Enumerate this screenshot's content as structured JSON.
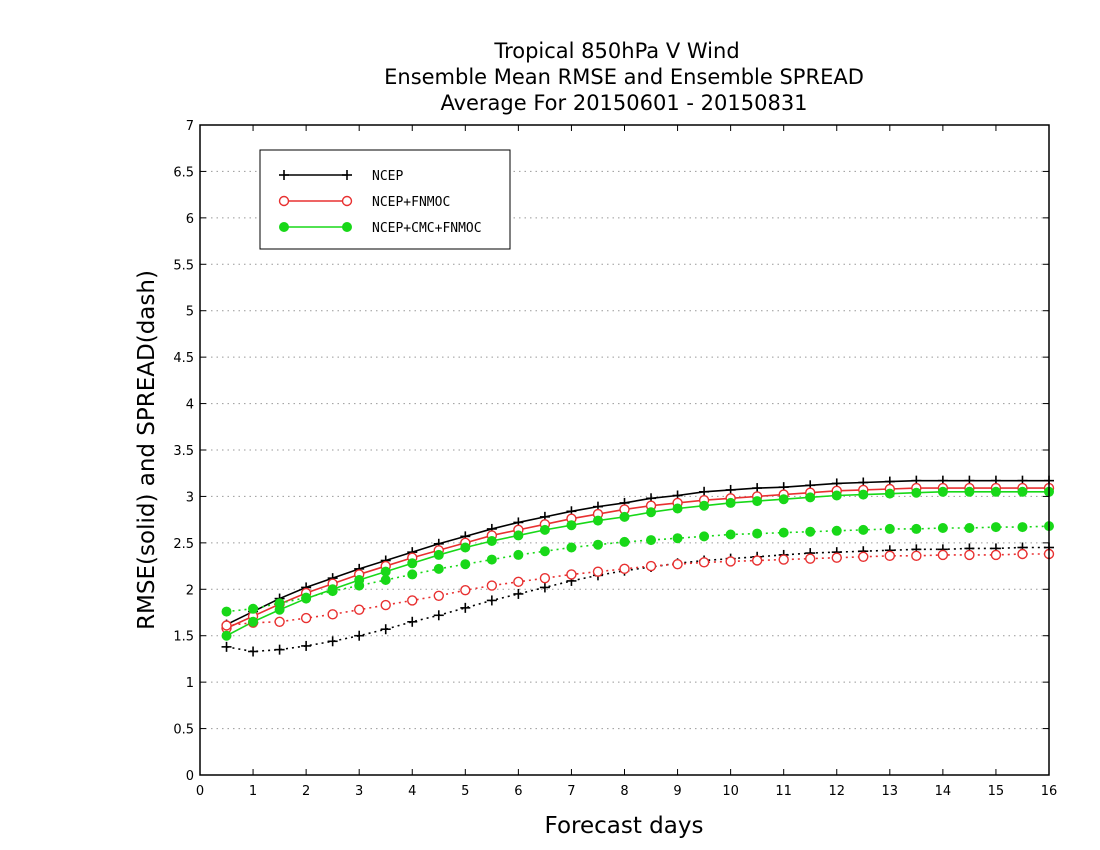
{
  "chart_data": {
    "type": "line",
    "title": [
      "Tropical 850hPa V Wind",
      "Ensemble Mean RMSE and Ensemble SPREAD",
      "Average For 20150601 - 20150831"
    ],
    "xlabel": "Forecast days",
    "ylabel": "RMSE(solid) and SPREAD(dash)",
    "xlim": [
      0,
      16
    ],
    "ylim": [
      0,
      7
    ],
    "xticks": [
      "0",
      "1",
      "2",
      "3",
      "4",
      "5",
      "6",
      "7",
      "8",
      "9",
      "10",
      "11",
      "12",
      "13",
      "14",
      "15",
      "16"
    ],
    "yticks": [
      "0",
      "0.5",
      "1",
      "1.5",
      "2",
      "2.5",
      "3",
      "3.5",
      "4",
      "4.5",
      "5",
      "5.5",
      "6",
      "6.5",
      "7"
    ],
    "grid": "horizontal dotted",
    "legend_position": "top-left",
    "x": [
      0.5,
      1,
      1.5,
      2,
      2.5,
      3,
      3.5,
      4,
      4.5,
      5,
      5.5,
      6,
      6.5,
      7,
      7.5,
      8,
      8.5,
      9,
      9.5,
      10,
      10.5,
      11,
      11.5,
      12,
      12.5,
      13,
      13.5,
      14,
      14.5,
      15,
      15.5,
      16
    ],
    "series": [
      {
        "name": "NCEP",
        "color": "#000000",
        "marker": "plus",
        "rmse": [
          1.62,
          1.76,
          1.9,
          2.02,
          2.12,
          2.22,
          2.31,
          2.4,
          2.49,
          2.57,
          2.65,
          2.72,
          2.78,
          2.84,
          2.89,
          2.93,
          2.98,
          3.01,
          3.05,
          3.07,
          3.09,
          3.1,
          3.12,
          3.14,
          3.15,
          3.16,
          3.17,
          3.17,
          3.17,
          3.17,
          3.17,
          3.17
        ],
        "spread": [
          1.38,
          1.33,
          1.35,
          1.39,
          1.44,
          1.5,
          1.57,
          1.65,
          1.72,
          1.8,
          1.88,
          1.95,
          2.02,
          2.09,
          2.15,
          2.2,
          2.24,
          2.28,
          2.31,
          2.33,
          2.35,
          2.37,
          2.39,
          2.4,
          2.41,
          2.42,
          2.43,
          2.43,
          2.44,
          2.44,
          2.45,
          2.45
        ]
      },
      {
        "name": "NCEP+FNMOC",
        "color": "#e83030",
        "marker": "open-circle",
        "rmse": [
          1.58,
          1.71,
          1.84,
          1.96,
          2.06,
          2.16,
          2.25,
          2.34,
          2.42,
          2.5,
          2.58,
          2.64,
          2.7,
          2.76,
          2.81,
          2.86,
          2.9,
          2.93,
          2.96,
          2.98,
          3.0,
          3.02,
          3.04,
          3.06,
          3.07,
          3.08,
          3.09,
          3.09,
          3.09,
          3.09,
          3.09,
          3.09
        ],
        "spread": [
          1.61,
          1.64,
          1.65,
          1.69,
          1.73,
          1.78,
          1.83,
          1.88,
          1.93,
          1.99,
          2.04,
          2.08,
          2.12,
          2.16,
          2.19,
          2.22,
          2.25,
          2.27,
          2.29,
          2.3,
          2.31,
          2.32,
          2.33,
          2.34,
          2.35,
          2.36,
          2.36,
          2.37,
          2.37,
          2.37,
          2.38,
          2.38
        ]
      },
      {
        "name": "NCEP+CMC+FNMOC",
        "color": "#18d818",
        "marker": "filled-circle",
        "rmse": [
          1.5,
          1.65,
          1.78,
          1.9,
          2.0,
          2.1,
          2.19,
          2.28,
          2.37,
          2.45,
          2.52,
          2.58,
          2.64,
          2.69,
          2.74,
          2.78,
          2.83,
          2.87,
          2.9,
          2.93,
          2.95,
          2.97,
          2.99,
          3.01,
          3.02,
          3.03,
          3.04,
          3.05,
          3.05,
          3.05,
          3.05,
          3.05
        ],
        "spread": [
          1.76,
          1.79,
          1.85,
          1.91,
          1.98,
          2.04,
          2.1,
          2.16,
          2.22,
          2.27,
          2.32,
          2.37,
          2.41,
          2.45,
          2.48,
          2.51,
          2.53,
          2.55,
          2.57,
          2.59,
          2.6,
          2.61,
          2.62,
          2.63,
          2.64,
          2.65,
          2.65,
          2.66,
          2.66,
          2.67,
          2.67,
          2.68
        ]
      }
    ]
  }
}
